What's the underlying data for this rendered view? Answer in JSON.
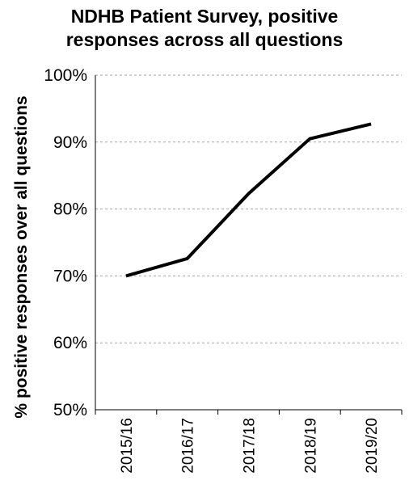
{
  "chart_data": {
    "type": "line",
    "title_lines": [
      "NDHB Patient Survey, positive",
      "responses across all questions"
    ],
    "xlabel": "",
    "ylabel": "% positive responses over all questions",
    "categories": [
      "2015/16",
      "2016/17",
      "2017/18",
      "2018/19",
      "2019/20"
    ],
    "series": [
      {
        "values": [
          70.0,
          72.6,
          82.3,
          90.5,
          92.7
        ]
      }
    ],
    "ylim": [
      50,
      100
    ],
    "yticks": [
      {
        "value": 50,
        "label": "50%"
      },
      {
        "value": 60,
        "label": "60%"
      },
      {
        "value": 70,
        "label": "70%"
      },
      {
        "value": 80,
        "label": "80%"
      },
      {
        "value": 90,
        "label": "90%"
      },
      {
        "value": 100,
        "label": "100%"
      }
    ],
    "grid": "horizontal-dashed",
    "legend": "none",
    "colors": {
      "line": "#000000",
      "grid": "#a6a6a6",
      "axis": "#000000"
    }
  }
}
